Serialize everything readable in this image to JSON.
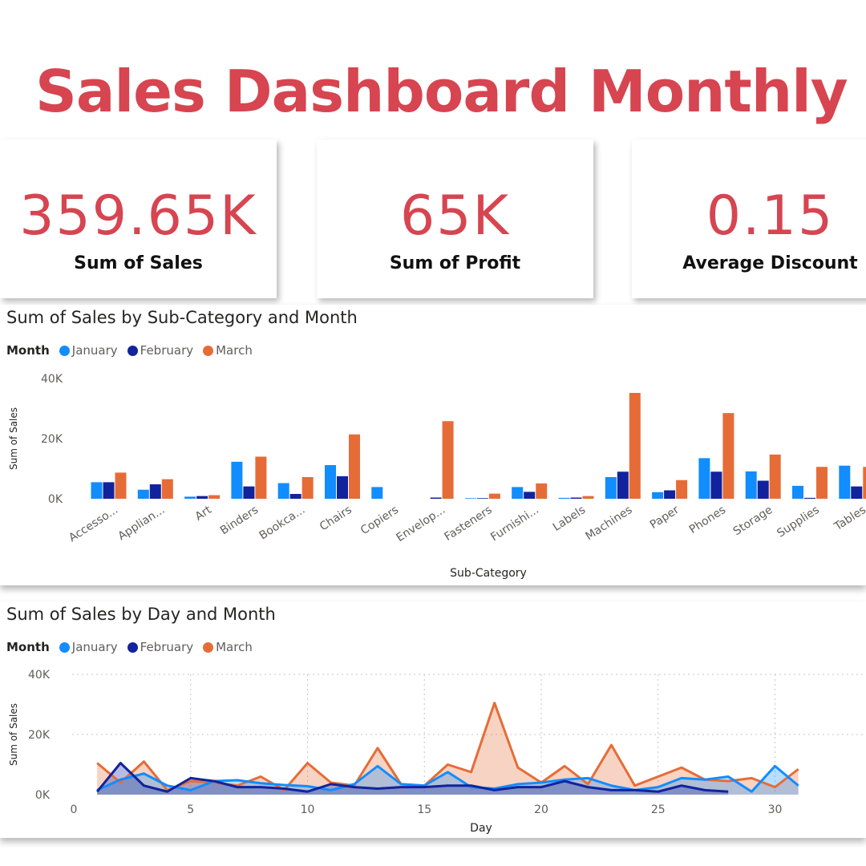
{
  "header": {
    "title": "Sales Dashboard Monthly"
  },
  "kpis": [
    {
      "value": "359.65K",
      "label": "Sum of Sales"
    },
    {
      "value": "65K",
      "label": "Sum of Profit"
    },
    {
      "value": "0.15",
      "label": "Average Discount"
    }
  ],
  "colors": {
    "january": "#118dff",
    "february": "#12239e",
    "march": "#e66c37",
    "accent": "#d64550"
  },
  "legend": {
    "title": "Month",
    "items": [
      "January",
      "February",
      "March"
    ]
  },
  "chart_data": [
    {
      "type": "bar",
      "title": "Sum of Sales by Sub-Category and Month",
      "xlabel": "Sub-Category",
      "ylabel": "Sum of Sales",
      "ylim": [
        0,
        40000
      ],
      "yticks": [
        "40K",
        "20K",
        "0K"
      ],
      "categories": [
        "Accesso...",
        "Applian...",
        "Art",
        "Binders",
        "Bookca...",
        "Chairs",
        "Copiers",
        "Envelop...",
        "Fasteners",
        "Furnishi...",
        "Labels",
        "Machines",
        "Paper",
        "Phones",
        "Storage",
        "Supplies",
        "Tables"
      ],
      "series": [
        {
          "name": "January",
          "values": [
            5500,
            3000,
            700,
            12300,
            5200,
            11200,
            3900,
            0,
            200,
            3900,
            300,
            7200,
            2200,
            13500,
            9100,
            4300,
            11000
          ]
        },
        {
          "name": "February",
          "values": [
            5500,
            4800,
            900,
            4100,
            1600,
            7500,
            0,
            400,
            200,
            2300,
            400,
            9000,
            2800,
            9000,
            6000,
            300,
            4100
          ]
        },
        {
          "name": "March",
          "values": [
            8700,
            6500,
            1200,
            14000,
            7200,
            21400,
            0,
            25800,
            1700,
            5100,
            900,
            35200,
            6200,
            28500,
            14700,
            10600,
            10600
          ]
        }
      ]
    },
    {
      "type": "area",
      "title": "Sum of Sales by Day and Month",
      "xlabel": "Day",
      "ylabel": "Sum of Sales",
      "ylim": [
        0,
        40000
      ],
      "yticks": [
        "40K",
        "20K",
        "0K"
      ],
      "xticks": [
        "0",
        "5",
        "10",
        "15",
        "20",
        "25",
        "30"
      ],
      "series": [
        {
          "name": "January",
          "x": [
            1,
            2,
            3,
            4,
            5,
            6,
            7,
            8,
            9,
            10,
            11,
            12,
            13,
            14,
            15,
            16,
            17,
            18,
            19,
            20,
            21,
            22,
            23,
            24,
            25,
            26,
            27,
            28,
            29,
            30,
            31
          ],
          "values": [
            1500,
            5000,
            7000,
            3000,
            1500,
            4500,
            4800,
            3800,
            3200,
            2800,
            1500,
            3500,
            9500,
            3500,
            3000,
            7500,
            2500,
            2000,
            3500,
            4000,
            5000,
            5500,
            3000,
            1500,
            2500,
            5500,
            5000,
            6000,
            1000,
            9500,
            3000
          ]
        },
        {
          "name": "February",
          "x": [
            1,
            2,
            3,
            4,
            5,
            6,
            7,
            8,
            9,
            10,
            11,
            12,
            13,
            14,
            15,
            16,
            17,
            18,
            19,
            20,
            21,
            22,
            23,
            24,
            25,
            26,
            27,
            28
          ],
          "values": [
            1000,
            10500,
            3000,
            1000,
            5500,
            4500,
            2500,
            2500,
            2000,
            1000,
            3500,
            2500,
            2000,
            2500,
            2500,
            3000,
            3000,
            1500,
            2500,
            2500,
            4500,
            2500,
            1500,
            1500,
            1000,
            3000,
            1500,
            1000
          ]
        },
        {
          "name": "March",
          "x": [
            1,
            2,
            3,
            4,
            5,
            6,
            7,
            8,
            9,
            10,
            11,
            12,
            13,
            14,
            15,
            16,
            17,
            18,
            19,
            20,
            21,
            22,
            23,
            24,
            25,
            26,
            27,
            28,
            29,
            30,
            31
          ],
          "values": [
            10500,
            4000,
            11000,
            1500,
            4500,
            4000,
            3000,
            6000,
            1500,
            10500,
            4000,
            3000,
            15500,
            3500,
            3000,
            10000,
            7500,
            30500,
            9000,
            4000,
            9500,
            3500,
            16500,
            3000,
            6000,
            9000,
            5000,
            4500,
            5500,
            2500,
            8500
          ]
        }
      ]
    }
  ]
}
